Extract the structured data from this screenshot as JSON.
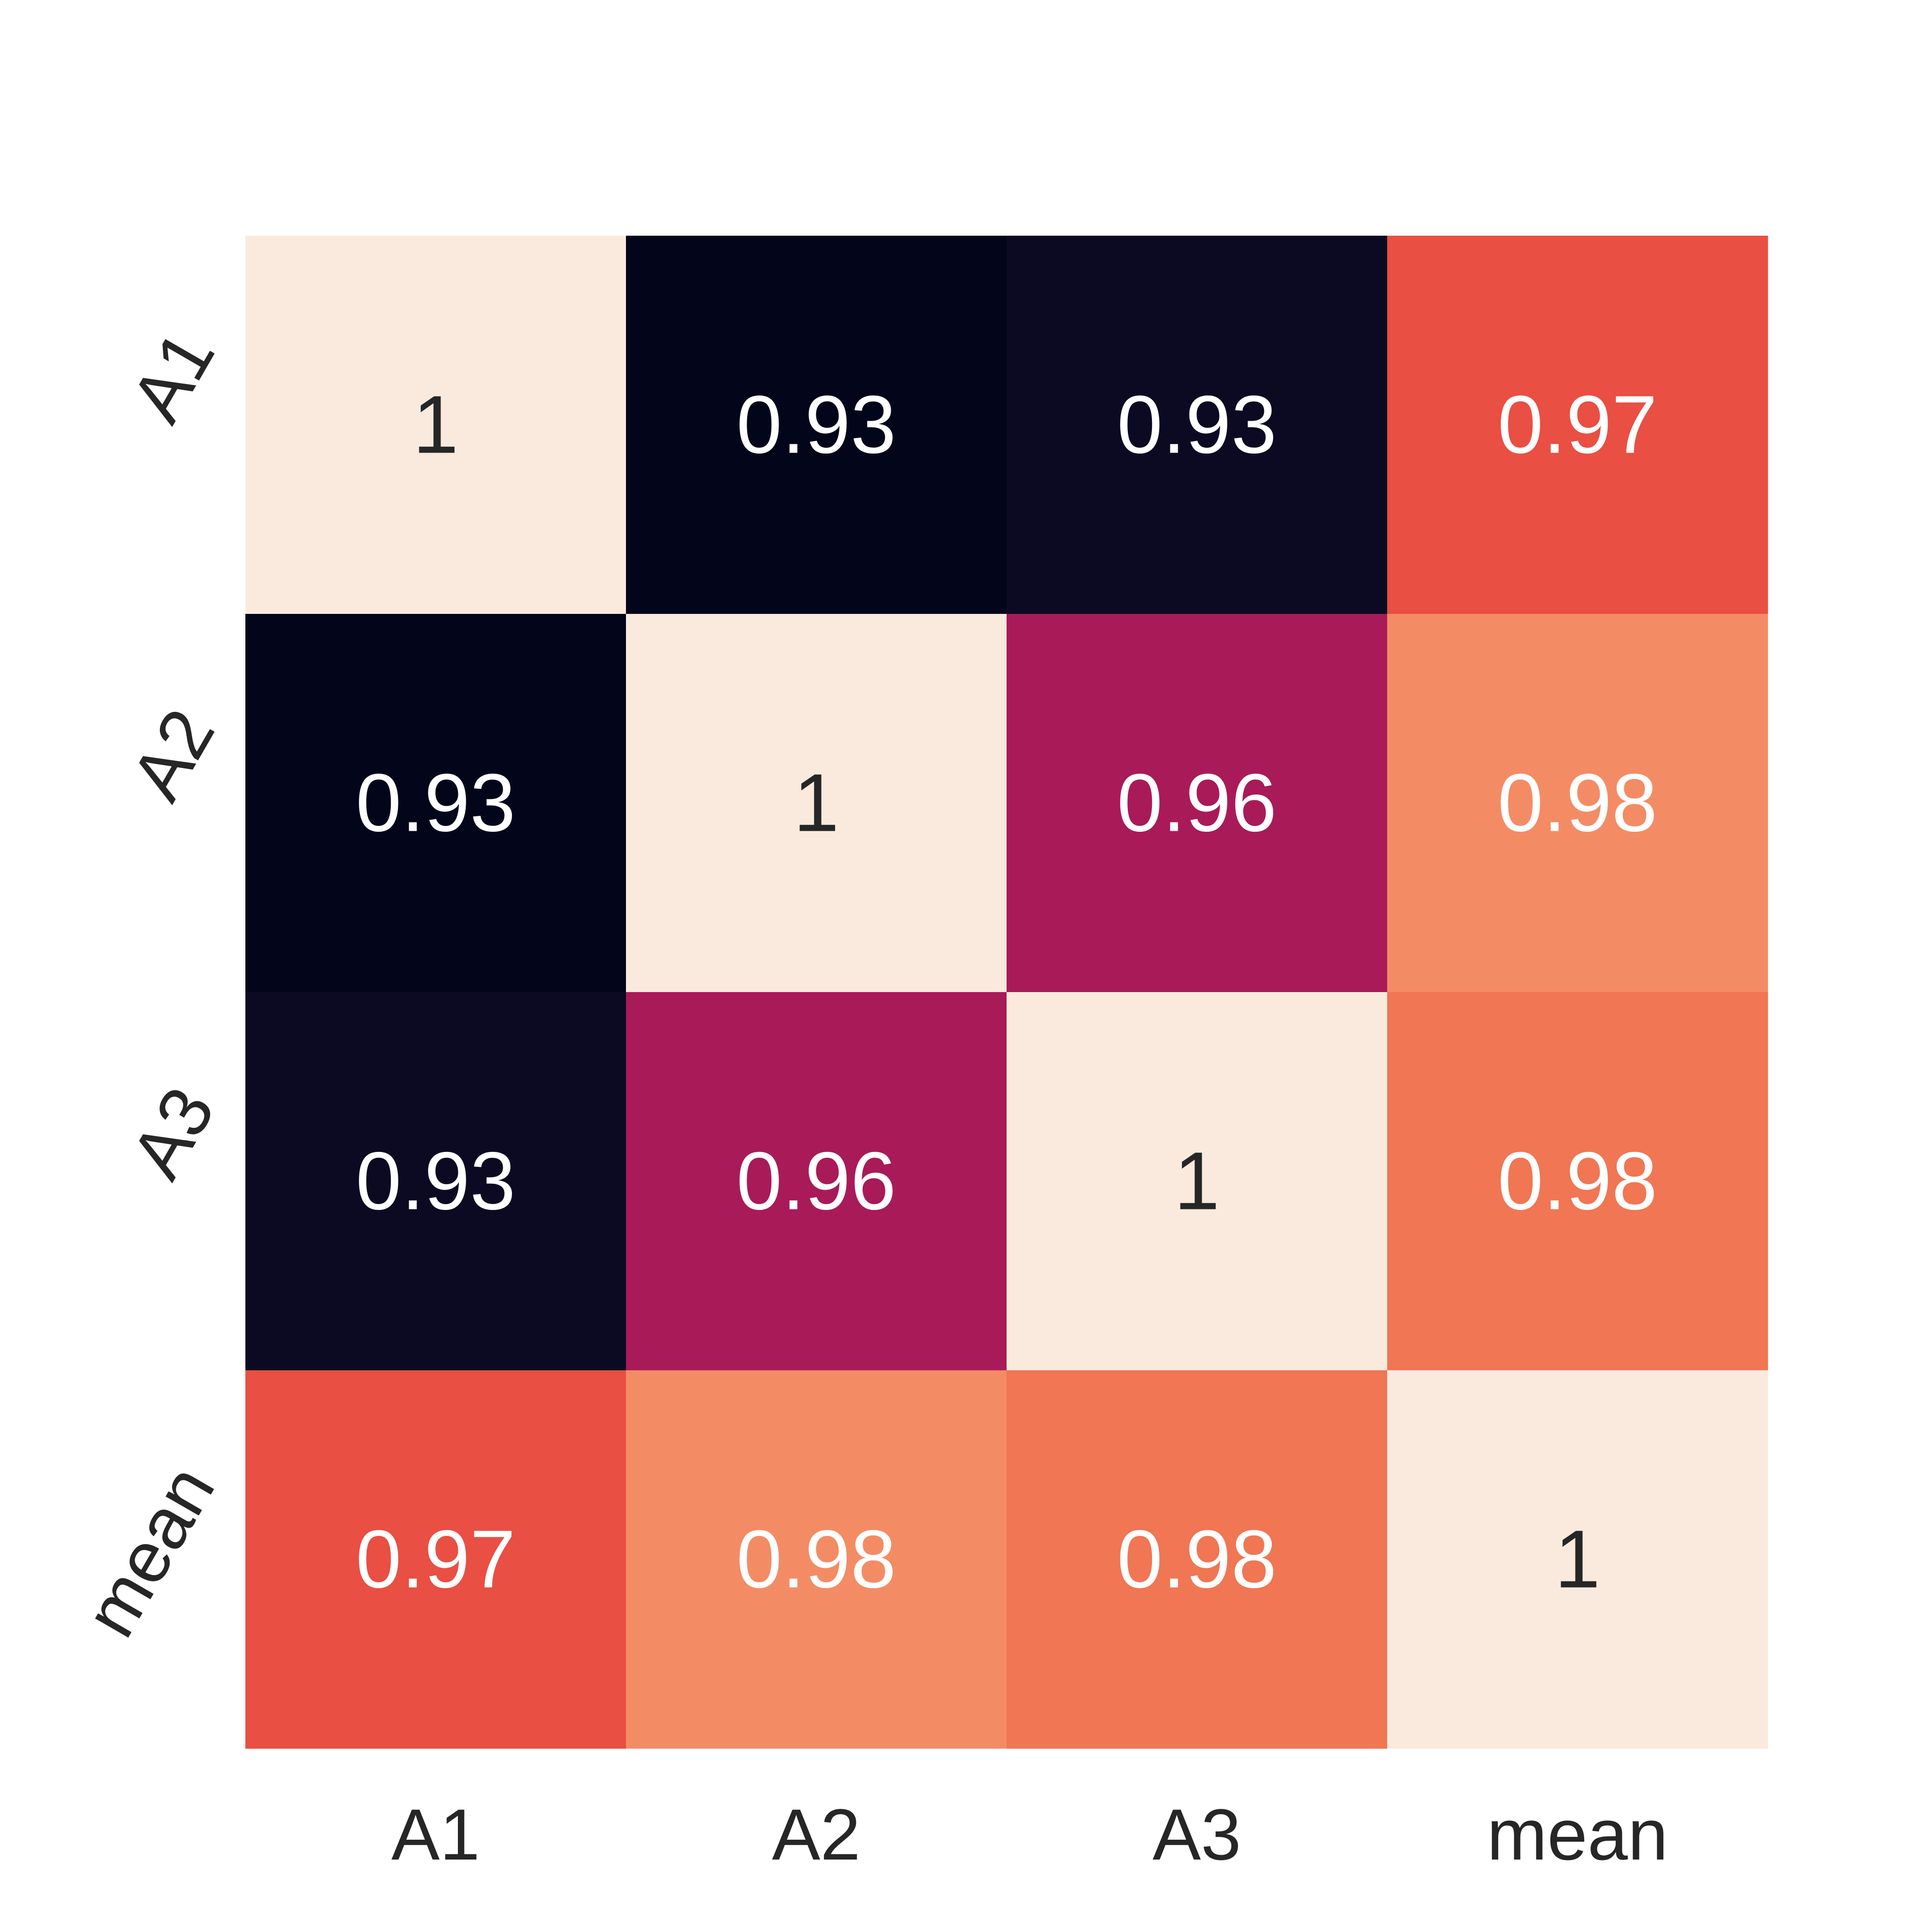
{
  "chart_data": {
    "type": "heatmap",
    "title": "",
    "xlabel": "",
    "ylabel": "",
    "x_categories": [
      "A1",
      "A2",
      "A3",
      "mean"
    ],
    "y_categories": [
      "A1",
      "A2",
      "A3",
      "mean"
    ],
    "values": [
      [
        1,
        0.93,
        0.93,
        0.97
      ],
      [
        0.93,
        1,
        0.96,
        0.98
      ],
      [
        0.93,
        0.96,
        1,
        0.98
      ],
      [
        0.97,
        0.98,
        0.98,
        1
      ]
    ],
    "value_labels": [
      [
        "1",
        "0.93",
        "0.93",
        "0.97"
      ],
      [
        "0.93",
        "1",
        "0.96",
        "0.98"
      ],
      [
        "0.93",
        "0.96",
        "1",
        "0.98"
      ],
      [
        "0.97",
        "0.98",
        "0.98",
        "1"
      ]
    ],
    "cell_colors": [
      [
        "#faeade",
        "#03051a",
        "#0c0a22",
        "#e94f42"
      ],
      [
        "#03051a",
        "#faeade",
        "#a91a58",
        "#f38c65"
      ],
      [
        "#0c0a22",
        "#a91a58",
        "#faeade",
        "#f07654"
      ],
      [
        "#e94f42",
        "#f38c65",
        "#f07654",
        "#faeade"
      ]
    ],
    "label_colors": [
      [
        "#262626",
        "#ffffff",
        "#ffffff",
        "#ffffff"
      ],
      [
        "#ffffff",
        "#262626",
        "#ffffff",
        "#ffffff"
      ],
      [
        "#ffffff",
        "#ffffff",
        "#262626",
        "#ffffff"
      ],
      [
        "#ffffff",
        "#ffffff",
        "#ffffff",
        "#262626"
      ]
    ],
    "colormap": "rocket",
    "colorbar": false,
    "grid": false
  }
}
